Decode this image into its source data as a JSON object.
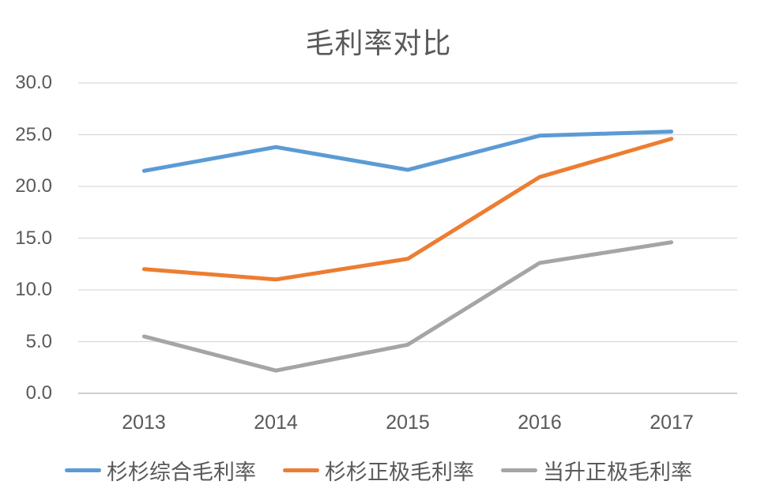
{
  "chart_data": {
    "type": "line",
    "title": "毛利率对比",
    "categories": [
      "2013",
      "2014",
      "2015",
      "2016",
      "2017"
    ],
    "series": [
      {
        "name": "杉杉综合毛利率",
        "color": "#5B9BD5",
        "values": [
          21.5,
          23.8,
          21.6,
          24.9,
          25.3
        ]
      },
      {
        "name": "杉杉正极毛利率",
        "color": "#ED7D31",
        "values": [
          12.0,
          11.0,
          13.0,
          20.9,
          24.6
        ]
      },
      {
        "name": "当升正极毛利率",
        "color": "#A5A5A5",
        "values": [
          5.5,
          2.2,
          4.7,
          12.6,
          14.6
        ]
      }
    ],
    "y_ticks": [
      30.0,
      25.0,
      20.0,
      15.0,
      10.0,
      5.0,
      0.0
    ],
    "y_tick_labels": [
      "30.0",
      "25.0",
      "20.0",
      "15.0",
      "10.0",
      "5.0",
      "0.0"
    ],
    "ylim": [
      0,
      30
    ],
    "xlabel": "",
    "ylabel": "",
    "grid": true,
    "legend_position": "bottom"
  },
  "colors": {
    "background": "#FFFFFF",
    "text": "#595959",
    "gridline": "#D9D9D9",
    "axis_line": "#BFBFBF"
  }
}
